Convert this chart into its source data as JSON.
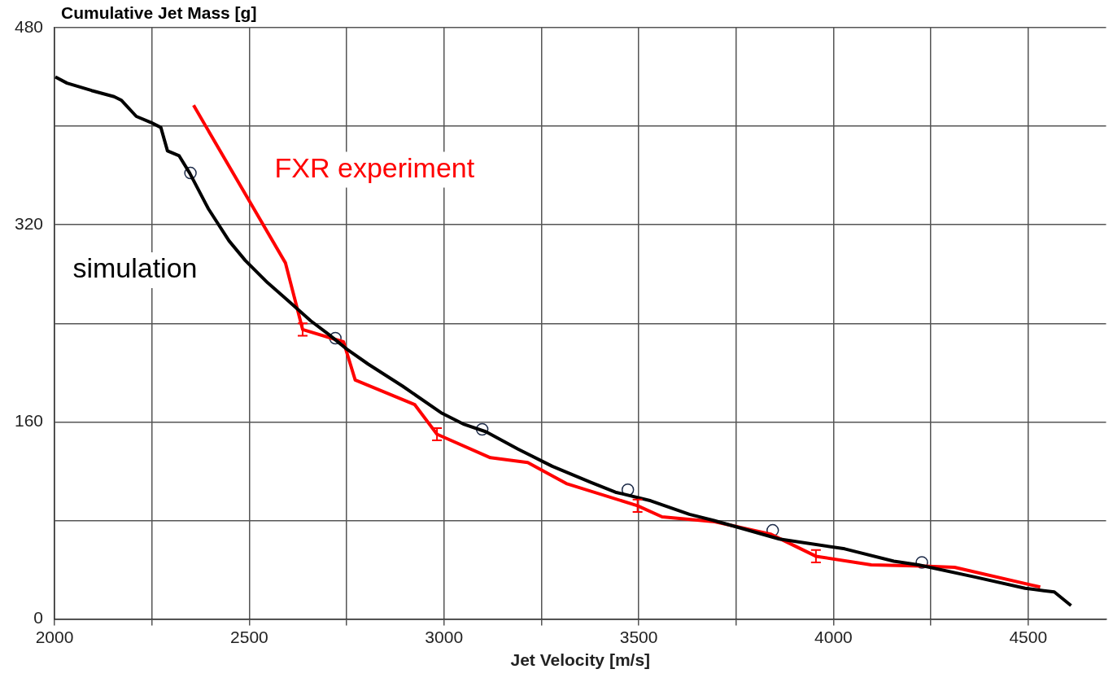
{
  "chart_data": {
    "type": "line",
    "xlabel": "Jet Velocity [m/s]",
    "ylabel": "Cumulative Jet Mass [g]",
    "xlim": [
      2000,
      4700
    ],
    "xticks": [
      2000,
      {
        "value": 2250,
        "label": null
      },
      2500,
      {
        "value": 2750,
        "label": null
      },
      3000,
      {
        "value": 3250,
        "label": null
      },
      3500,
      {
        "value": 3750,
        "label": null
      },
      4000,
      {
        "value": 4250,
        "label": null
      },
      4500
    ],
    "ylim": [
      0,
      480
    ],
    "yticks": [
      0,
      {
        "value": 80,
        "label": null
      },
      160,
      {
        "value": 240,
        "label": null
      },
      320,
      {
        "value": 400,
        "label": null
      },
      480
    ],
    "grid": true,
    "legend": false,
    "series": [
      {
        "name": "simulation",
        "color": "#000000",
        "marker": "none",
        "x": [
          2002,
          2032,
          2095,
          2153,
          2172,
          2210,
          2248,
          2273,
          2290,
          2320,
          2347,
          2395,
          2448,
          2490,
          2547,
          2594,
          2658,
          2704,
          2751,
          2805,
          2894,
          2995,
          3052,
          3108,
          3190,
          3278,
          3377,
          3440,
          3531,
          3630,
          3693,
          3861,
          4029,
          4155,
          4218,
          4365,
          4492,
          4540,
          4567,
          4610
        ],
        "values": [
          440,
          435,
          429,
          424,
          421,
          408,
          403,
          399,
          380,
          376,
          362,
          333,
          307,
          291,
          273,
          260,
          242,
          231,
          219,
          207,
          189,
          167,
          158,
          152,
          138,
          124,
          111,
          103,
          96,
          85,
          80,
          65,
          57,
          47,
          44,
          34,
          25,
          23,
          22,
          11
        ]
      },
      {
        "name": "FXR experiment",
        "color": "#ff0000",
        "marker": "none",
        "x": [
          2357,
          2593,
          2637,
          2742,
          2772,
          2925,
          2982,
          3119,
          3215,
          3314,
          3497,
          3560,
          3695,
          3838,
          3955,
          4097,
          4230,
          4311,
          4531
        ],
        "values": [
          417,
          289,
          235,
          225,
          194,
          174,
          150,
          131,
          127,
          110,
          92,
          83,
          79,
          69,
          51,
          44,
          43,
          42,
          26
        ],
        "errors": [
          null,
          null,
          5,
          null,
          null,
          null,
          5,
          null,
          null,
          null,
          5,
          null,
          null,
          null,
          5,
          null,
          null,
          null,
          null
        ]
      },
      {
        "type": "scatter",
        "color": "#1c2a48",
        "marker": "circle",
        "x": [
          2349,
          2721,
          3098,
          3472,
          3844,
          4227
        ],
        "values": [
          362,
          228,
          154,
          105,
          72,
          46
        ]
      }
    ]
  }
}
